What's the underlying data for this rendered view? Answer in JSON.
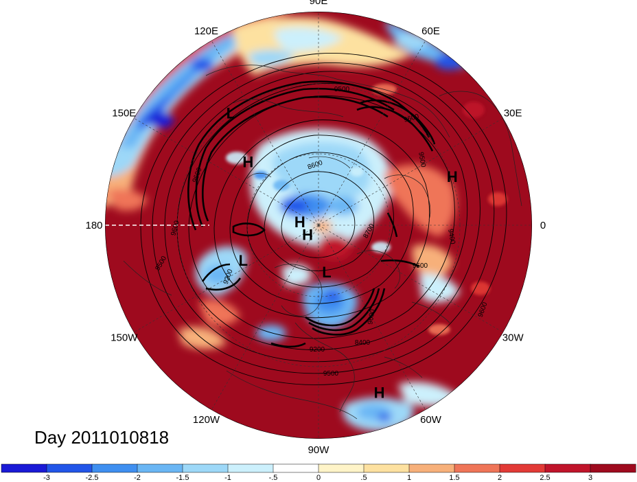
{
  "title": "Day 2011010818",
  "longitude_labels": [
    "90E",
    "60E",
    "30E",
    "0",
    "30W",
    "60W",
    "90W",
    "120W",
    "150W",
    "180",
    "150E",
    "120E"
  ],
  "pressure_centers": [
    {
      "label": "L",
      "lon": 128,
      "lat": 30
    },
    {
      "label": "H",
      "lon": 138,
      "lat": 50
    },
    {
      "label": "H",
      "lon": 20,
      "lat": 30
    },
    {
      "label": "H",
      "lon": 170,
      "lat": 82
    },
    {
      "label": "H",
      "lon": -140,
      "lat": 84
    },
    {
      "label": "L",
      "lon": -155,
      "lat": 55
    },
    {
      "label": "L",
      "lon": -80,
      "lat": 70
    },
    {
      "label": "H",
      "lon": -70,
      "lat": 15
    }
  ],
  "contour_labels": [
    "9500",
    "9600",
    "8600",
    "9500",
    "9600",
    "9600",
    "9500",
    "9200",
    "8700",
    "9400",
    "9500",
    "9600",
    "9200",
    "8400",
    "9500",
    "9600"
  ],
  "colorbar": {
    "levels": [
      "-3",
      "-2.5",
      "-2",
      "-1.5",
      "-1",
      "-.5",
      "0",
      ".5",
      "1",
      "1.5",
      "2",
      "2.5",
      "3"
    ],
    "colors": [
      "#1a1ad6",
      "#2255e8",
      "#3f8ff0",
      "#6ab6f4",
      "#9dd8f8",
      "#ccf0fc",
      "#ffffff",
      "#fff4c8",
      "#fde1a0",
      "#f7b07a",
      "#ef7558",
      "#e23a36",
      "#c0142a",
      "#9e0a1e"
    ]
  },
  "colors": {
    "neg_strong": "#1a1ad6",
    "neg_mid": "#3f8ff0",
    "neg_weak": "#9dd8f8",
    "pos_weak": "#fde1a0",
    "pos_mid": "#ef7558",
    "pos_strong": "#9e0a1e"
  }
}
